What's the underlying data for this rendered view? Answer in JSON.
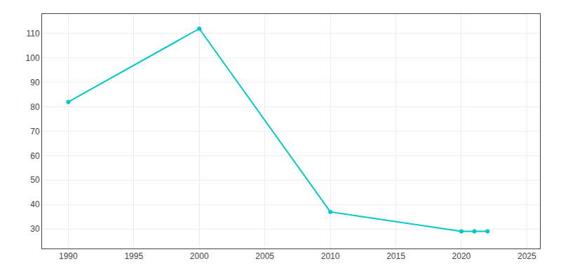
{
  "chart_data": {
    "type": "line",
    "x": [
      1990,
      2000,
      2010,
      2020,
      2021,
      2022
    ],
    "values": [
      82,
      112,
      37,
      29,
      29,
      29
    ],
    "color": "#00C8C8",
    "marker": "circle",
    "xlim": [
      1988,
      2026
    ],
    "ylim": [
      22,
      118
    ],
    "xticks": [
      1990,
      1995,
      2000,
      2005,
      2010,
      2015,
      2020,
      2025
    ],
    "yticks": [
      30,
      40,
      50,
      60,
      70,
      80,
      90,
      100,
      110
    ],
    "grid": true
  }
}
